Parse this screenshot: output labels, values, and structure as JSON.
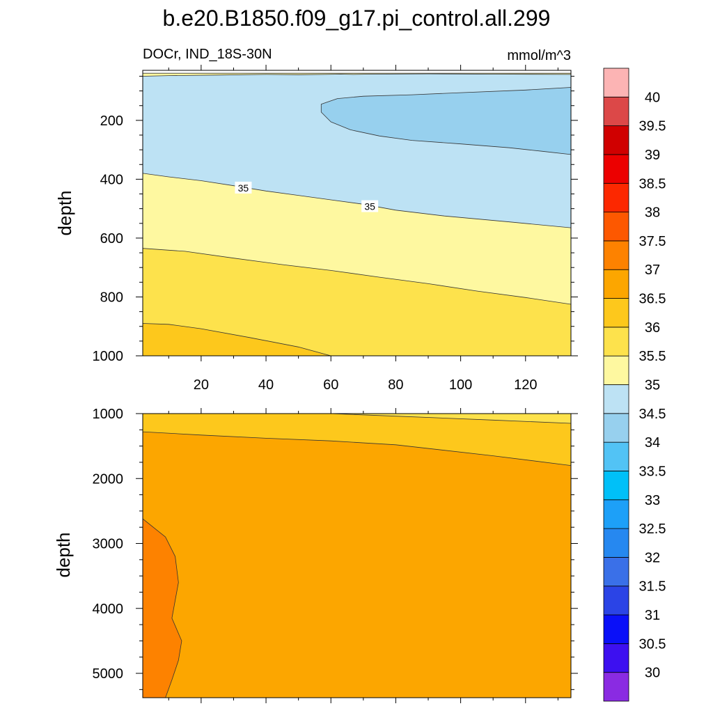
{
  "figure": {
    "title": "b.e20.B1850.f09_g17.pi_control.all.299",
    "left_label": "DOCr, IND_18S-30N",
    "right_label": "mmol/m^3"
  },
  "chart_data": {
    "type": "heatmap",
    "variable": "DOCr",
    "region": "IND_18S-30N",
    "units": "mmol/m^3",
    "colorbar": {
      "levels": [
        30,
        30.5,
        31,
        31.5,
        32,
        32.5,
        33,
        33.5,
        34,
        34.5,
        35,
        35.5,
        36,
        36.5,
        37,
        37.5,
        38,
        38.5,
        39,
        39.5,
        40
      ],
      "colors": [
        "#8a2be2",
        "#3d10f0",
        "#0a10f8",
        "#2b44e6",
        "#3a70e8",
        "#2688f0",
        "#1da0f8",
        "#00c0f8",
        "#52c3f5",
        "#97d0ee",
        "#bde2f4",
        "#fef8a0",
        "#fde24c",
        "#fdc81c",
        "#fca600",
        "#fd8200",
        "#fd5800",
        "#fc2800",
        "#ec0000",
        "#d00000",
        "#dc4848",
        "#fcb4b4"
      ]
    },
    "panels": [
      {
        "name": "upper",
        "ylabel": "depth",
        "xlabel": "",
        "xlim": [
          2,
          134
        ],
        "ylim": [
          1000,
          30
        ],
        "x_ticks": [
          20,
          40,
          60,
          80,
          100,
          120
        ],
        "y_ticks": [
          200,
          400,
          600,
          800,
          1000
        ],
        "regions": [
          {
            "level": "35-35.5",
            "color": "#fef8a0",
            "polygon": [
              [
                2,
                40
              ],
              [
                134,
                40
              ],
              [
                134,
                1000
              ],
              [
                2,
                1000
              ]
            ]
          },
          {
            "level": "34.5-35",
            "color": "#bde2f4",
            "polygon": [
              [
                2,
                50
              ],
              [
                10,
                48
              ],
              [
                25,
                46
              ],
              [
                40,
                44
              ],
              [
                50,
                45
              ],
              [
                58,
                44
              ],
              [
                63,
                43
              ],
              [
                67,
                44
              ],
              [
                72,
                43
              ],
              [
                90,
                42
              ],
              [
                110,
                43
              ],
              [
                134,
                44
              ],
              [
                134,
                565
              ],
              [
                115,
                545
              ],
              [
                95,
                525
              ],
              [
                80,
                505
              ],
              [
                70,
                485
              ],
              [
                60,
                470
              ],
              [
                50,
                455
              ],
              [
                40,
                440
              ],
              [
                30,
                422
              ],
              [
                20,
                405
              ],
              [
                10,
                392
              ],
              [
                2,
                380
              ]
            ]
          },
          {
            "level": "34-34.5",
            "color": "#97d0ee",
            "polygon": [
              [
                57,
                145
              ],
              [
                62,
                126
              ],
              [
                70,
                118
              ],
              [
                85,
                113
              ],
              [
                100,
                106
              ],
              [
                120,
                97
              ],
              [
                134,
                88
              ],
              [
                134,
                316
              ],
              [
                125,
                305
              ],
              [
                115,
                293
              ],
              [
                100,
                280
              ],
              [
                85,
                268
              ],
              [
                75,
                253
              ],
              [
                66,
                232
              ],
              [
                60,
                205
              ],
              [
                57,
                172
              ]
            ]
          },
          {
            "level": "35.5-36",
            "color": "#fde24c",
            "polygon": [
              [
                2,
                635
              ],
              [
                15,
                645
              ],
              [
                30,
                668
              ],
              [
                45,
                690
              ],
              [
                60,
                710
              ],
              [
                75,
                733
              ],
              [
                90,
                755
              ],
              [
                105,
                780
              ],
              [
                120,
                802
              ],
              [
                134,
                825
              ],
              [
                134,
                1000
              ],
              [
                2,
                1000
              ]
            ]
          },
          {
            "level": "36-36.5",
            "color": "#fdc81c",
            "polygon": [
              [
                2,
                890
              ],
              [
                10,
                893
              ],
              [
                20,
                908
              ],
              [
                35,
                938
              ],
              [
                50,
                970
              ],
              [
                60,
                1000
              ],
              [
                2,
                1000
              ]
            ]
          }
        ],
        "contour_labels": [
          {
            "text": "35",
            "x": 33,
            "y": 432
          },
          {
            "text": "35",
            "x": 72,
            "y": 495
          }
        ]
      },
      {
        "name": "lower",
        "ylabel": "depth",
        "xlabel": "",
        "xlim": [
          2,
          134
        ],
        "ylim": [
          5375,
          1000
        ],
        "x_ticks": [],
        "y_ticks": [
          1000,
          2000,
          3000,
          4000,
          5000
        ],
        "regions": [
          {
            "level": "36.5-37",
            "color": "#fca600",
            "polygon": [
              [
                2,
                1000
              ],
              [
                134,
                1000
              ],
              [
                134,
                5375
              ],
              [
                2,
                5375
              ]
            ]
          },
          {
            "level": "36-36.5",
            "color": "#fdc81c",
            "polygon": [
              [
                2,
                1000
              ],
              [
                134,
                1000
              ],
              [
                134,
                1800
              ],
              [
                110,
                1650
              ],
              [
                80,
                1480
              ],
              [
                60,
                1420
              ],
              [
                40,
                1380
              ],
              [
                20,
                1330
              ],
              [
                2,
                1280
              ]
            ]
          },
          {
            "level": "35.5-36",
            "color": "#fde24c",
            "polygon": [
              [
                60,
                1000
              ],
              [
                134,
                1000
              ],
              [
                134,
                1150
              ],
              [
                110,
                1100
              ],
              [
                80,
                1040
              ],
              [
                60,
                1000
              ]
            ]
          },
          {
            "level": "37-37.5",
            "color": "#fd8200",
            "polygon": [
              [
                2,
                2620
              ],
              [
                9,
                2900
              ],
              [
                12,
                3200
              ],
              [
                13,
                3600
              ],
              [
                11,
                4150
              ],
              [
                14,
                4500
              ],
              [
                13,
                4800
              ],
              [
                11,
                5100
              ],
              [
                9,
                5375
              ],
              [
                2,
                5375
              ]
            ]
          }
        ],
        "contour_labels": []
      }
    ]
  }
}
